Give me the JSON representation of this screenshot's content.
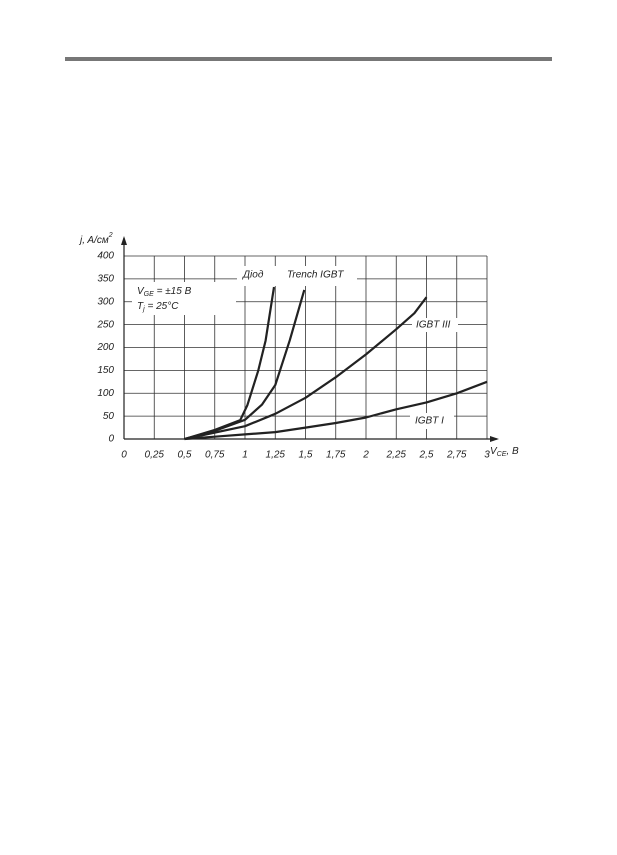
{
  "chart_data": {
    "type": "line",
    "x_label": {
      "text": "V",
      "subscript": "CE",
      "suffix": ", B"
    },
    "y_label": {
      "text": "j, A/см",
      "superscript": "2"
    },
    "annotations": [
      {
        "text": "V",
        "subscript": "GE",
        "suffix": " = ±15 B"
      },
      {
        "text": "T",
        "subscript": "j",
        "suffix": " = 25°C"
      }
    ],
    "xlim": [
      0,
      3
    ],
    "ylim": [
      0,
      400
    ],
    "xticks": [
      0,
      {
        "value": 0.25,
        "label": "0,25"
      },
      {
        "value": 0.5,
        "label": "0,5"
      },
      {
        "value": 0.75,
        "label": "0,75"
      },
      1,
      {
        "value": 1.25,
        "label": "1,25"
      },
      {
        "value": 1.5,
        "label": "1,5"
      },
      {
        "value": 1.75,
        "label": "1,75"
      },
      2,
      {
        "value": 2.25,
        "label": "2,25"
      },
      {
        "value": 2.5,
        "label": "2,5"
      },
      {
        "value": 2.75,
        "label": "2,75"
      },
      3
    ],
    "yticks": [
      0,
      50,
      100,
      150,
      200,
      250,
      300,
      350,
      400
    ],
    "grid": true,
    "series": [
      {
        "name": "Діод",
        "color": "#222222",
        "x": [
          0.5,
          0.75,
          0.96,
          1.02,
          1.11,
          1.17,
          1.24
        ],
        "values": [
          0,
          20,
          41,
          74,
          150,
          215,
          332
        ]
      },
      {
        "name": "Trench IGBT",
        "color": "#222222",
        "x": [
          0.5,
          0.75,
          1.0,
          1.14,
          1.25,
          1.37,
          1.49
        ],
        "values": [
          0,
          18,
          42,
          75,
          118,
          216,
          326
        ]
      },
      {
        "name": "IGBT III",
        "color": "#222222",
        "x": [
          0.5,
          1.0,
          1.25,
          1.5,
          1.75,
          2.0,
          2.25,
          2.4,
          2.5
        ],
        "values": [
          0,
          28,
          55,
          90,
          135,
          185,
          240,
          275,
          310
        ]
      },
      {
        "name": "IGBT I",
        "color": "#222222",
        "x": [
          0.5,
          0.75,
          1.0,
          1.25,
          1.5,
          1.75,
          2.0,
          2.25,
          2.5,
          2.75,
          3.0
        ],
        "values": [
          0,
          5,
          10,
          15,
          25,
          35,
          47,
          65,
          80,
          100,
          125
        ]
      }
    ]
  }
}
